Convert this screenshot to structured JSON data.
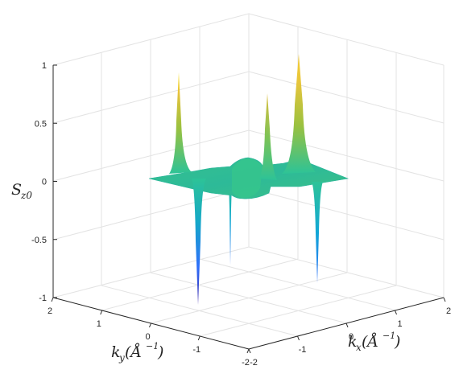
{
  "chart_data": {
    "type": "surface",
    "title": "",
    "xlabel": "k_x(Å^-1)",
    "ylabel": "k_y(Å^-1)",
    "zlabel": "S_z0",
    "xlim": [
      -2,
      2
    ],
    "ylim": [
      -2,
      2
    ],
    "zlim": [
      -1,
      1
    ],
    "x_ticks": [
      "-2",
      "-1",
      "0",
      "1",
      "2"
    ],
    "y_ticks": [
      "2",
      "1",
      "0",
      "-1",
      "-2"
    ],
    "z_ticks": [
      "1",
      "0.5",
      "0",
      "-0.5",
      "-1"
    ],
    "grid": true,
    "colormap": "parula",
    "colormap_colors": [
      "#3e26a8",
      "#2e6ffb",
      "#12a7d6",
      "#2dc397",
      "#9ac13f",
      "#f4c23b",
      "#f9fb0e"
    ],
    "surface_features": [
      {
        "kind": "peak",
        "kx": -1.8,
        "ky": 0.0,
        "value": 0.95
      },
      {
        "kind": "peak",
        "kx": 0.5,
        "ky": 1.5,
        "value": 0.77
      },
      {
        "kind": "peak",
        "kx": 1.4,
        "ky": 1.2,
        "value": 1.0
      },
      {
        "kind": "dip",
        "kx": 0.0,
        "ky": -1.9,
        "value": -1.0
      },
      {
        "kind": "dip",
        "kx": 0.4,
        "ky": -0.4,
        "value": -0.82
      },
      {
        "kind": "dip",
        "kx": 1.9,
        "ky": 0.0,
        "value": -0.95
      },
      {
        "kind": "ring",
        "center": [
          0,
          0
        ],
        "radius": 0.2,
        "value": 0.1
      }
    ]
  }
}
